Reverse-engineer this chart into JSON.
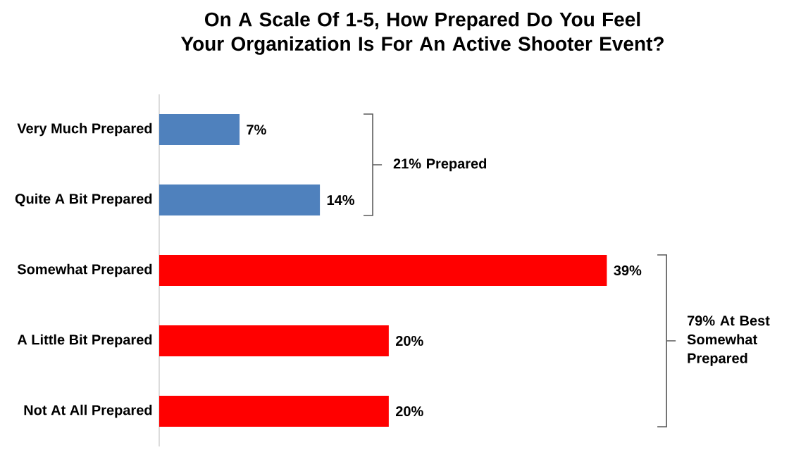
{
  "chart_data": {
    "type": "bar",
    "orientation": "horizontal",
    "title": "On A Scale Of 1-5, How Prepared Do You Feel Your Organization Is For An Active Shooter Event?",
    "categories": [
      "Very Much Prepared",
      "Quite A Bit Prepared",
      "Somewhat Prepared",
      "A Little Bit Prepared",
      "Not At All Prepared"
    ],
    "values": [
      7,
      14,
      39,
      20,
      20
    ],
    "colors": [
      "#4f81bd",
      "#4f81bd",
      "#ff0000",
      "#ff0000",
      "#ff0000"
    ],
    "value_labels": [
      "7%",
      "14%",
      "39%",
      "20%",
      "20%"
    ],
    "annotations": [
      "21% Prepared",
      "79% At Best Somewhat Prepared"
    ]
  }
}
